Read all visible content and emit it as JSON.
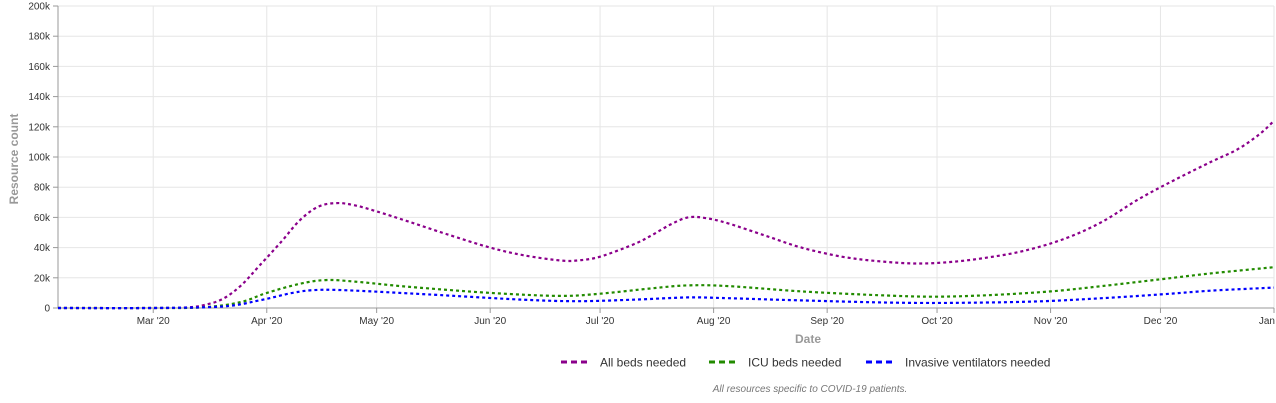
{
  "chart_data": {
    "type": "line",
    "xlabel": "Date",
    "ylabel": "Resource count",
    "x_ticks": [
      "Mar '20",
      "Apr '20",
      "May '20",
      "Jun '20",
      "Jul '20",
      "Aug '20",
      "Sep '20",
      "Oct '20",
      "Nov '20",
      "Dec '20",
      "Jan"
    ],
    "y_ticks": [
      "0",
      "20k",
      "40k",
      "60k",
      "80k",
      "100k",
      "120k",
      "140k",
      "160k",
      "180k",
      "200k"
    ],
    "ylim": [
      0,
      200000
    ],
    "xlim": [
      "2020-02-04",
      "2021-01-01"
    ],
    "grid": true,
    "legend_position": "bottom",
    "footnote": "All resources specific to COVID-19 patients.",
    "series": [
      {
        "name": "All beds needed",
        "color": "#8b008b",
        "dash": "dotted",
        "points": [
          [
            "2020-02-04",
            0
          ],
          [
            "2020-03-01",
            0
          ],
          [
            "2020-03-10",
            300
          ],
          [
            "2020-03-15",
            2000
          ],
          [
            "2020-03-20",
            6000
          ],
          [
            "2020-03-25",
            15000
          ],
          [
            "2020-03-30",
            28000
          ],
          [
            "2020-04-05",
            44000
          ],
          [
            "2020-04-10",
            58000
          ],
          [
            "2020-04-15",
            67000
          ],
          [
            "2020-04-20",
            69500
          ],
          [
            "2020-04-25",
            68000
          ],
          [
            "2020-05-01",
            64000
          ],
          [
            "2020-05-10",
            57000
          ],
          [
            "2020-05-20",
            49000
          ],
          [
            "2020-06-01",
            40000
          ],
          [
            "2020-06-10",
            35000
          ],
          [
            "2020-06-20",
            31500
          ],
          [
            "2020-06-25",
            31500
          ],
          [
            "2020-07-01",
            34000
          ],
          [
            "2020-07-10",
            42000
          ],
          [
            "2020-07-15",
            48000
          ],
          [
            "2020-07-20",
            55000
          ],
          [
            "2020-07-25",
            60000
          ],
          [
            "2020-07-30",
            59500
          ],
          [
            "2020-08-05",
            56000
          ],
          [
            "2020-08-15",
            48000
          ],
          [
            "2020-08-25",
            40000
          ],
          [
            "2020-09-05",
            34000
          ],
          [
            "2020-09-15",
            31000
          ],
          [
            "2020-09-25",
            29500
          ],
          [
            "2020-10-05",
            30500
          ],
          [
            "2020-10-15",
            33500
          ],
          [
            "2020-10-25",
            38000
          ],
          [
            "2020-11-05",
            46000
          ],
          [
            "2020-11-15",
            57000
          ],
          [
            "2020-11-25",
            72000
          ],
          [
            "2020-12-05",
            85000
          ],
          [
            "2020-12-15",
            97000
          ],
          [
            "2020-12-22",
            105000
          ],
          [
            "2020-12-28",
            115000
          ],
          [
            "2021-01-01",
            124000
          ]
        ]
      },
      {
        "name": "ICU beds needed",
        "color": "#228b00",
        "dash": "dotted",
        "points": [
          [
            "2020-02-04",
            0
          ],
          [
            "2020-03-01",
            0
          ],
          [
            "2020-03-15",
            500
          ],
          [
            "2020-03-25",
            4000
          ],
          [
            "2020-04-01",
            10000
          ],
          [
            "2020-04-10",
            16000
          ],
          [
            "2020-04-17",
            18500
          ],
          [
            "2020-04-25",
            17500
          ],
          [
            "2020-05-10",
            14000
          ],
          [
            "2020-06-01",
            10000
          ],
          [
            "2020-06-20",
            8000
          ],
          [
            "2020-07-01",
            9500
          ],
          [
            "2020-07-15",
            13000
          ],
          [
            "2020-07-25",
            15000
          ],
          [
            "2020-08-05",
            14500
          ],
          [
            "2020-08-25",
            11000
          ],
          [
            "2020-09-15",
            8500
          ],
          [
            "2020-09-30",
            7500
          ],
          [
            "2020-10-15",
            8500
          ],
          [
            "2020-11-01",
            11000
          ],
          [
            "2020-11-15",
            14500
          ],
          [
            "2020-12-01",
            19000
          ],
          [
            "2020-12-15",
            23000
          ],
          [
            "2021-01-01",
            27000
          ]
        ]
      },
      {
        "name": "Invasive ventilators needed",
        "color": "#0000ff",
        "dash": "dotted",
        "points": [
          [
            "2020-02-04",
            0
          ],
          [
            "2020-03-01",
            0
          ],
          [
            "2020-03-20",
            1000
          ],
          [
            "2020-03-30",
            5000
          ],
          [
            "2020-04-08",
            10000
          ],
          [
            "2020-04-15",
            12000
          ],
          [
            "2020-04-25",
            11500
          ],
          [
            "2020-05-15",
            9000
          ],
          [
            "2020-06-10",
            5500
          ],
          [
            "2020-06-25",
            4500
          ],
          [
            "2020-07-10",
            5500
          ],
          [
            "2020-07-25",
            7000
          ],
          [
            "2020-08-05",
            6500
          ],
          [
            "2020-08-25",
            5000
          ],
          [
            "2020-09-20",
            3500
          ],
          [
            "2020-10-10",
            3500
          ],
          [
            "2020-10-30",
            4500
          ],
          [
            "2020-11-15",
            6500
          ],
          [
            "2020-12-01",
            9000
          ],
          [
            "2020-12-15",
            11500
          ],
          [
            "2021-01-01",
            13500
          ]
        ]
      }
    ]
  }
}
